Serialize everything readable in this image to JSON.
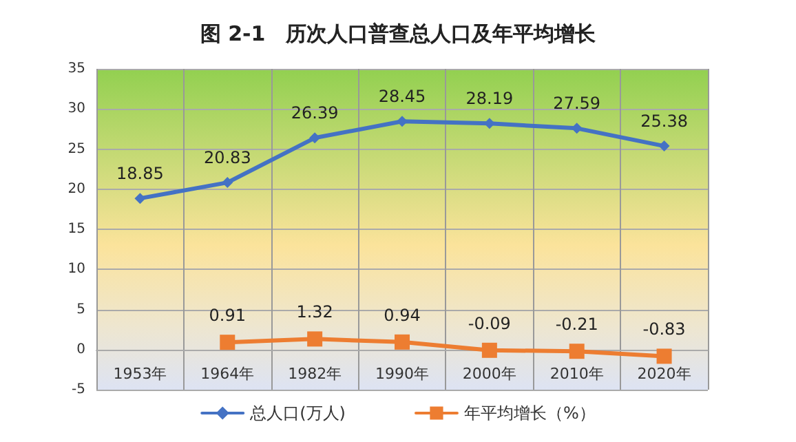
{
  "chart_data": {
    "type": "line",
    "title": "图 2-1　历次人口普查总人口及年平均增长",
    "categories": [
      "1953年",
      "1964年",
      "1982年",
      "1990年",
      "2000年",
      "2010年",
      "2020年"
    ],
    "series": [
      {
        "name": "总人口(万人)",
        "color": "#4472c4",
        "marker": "diamond",
        "values": [
          18.85,
          20.83,
          26.39,
          28.45,
          28.19,
          27.59,
          25.38
        ]
      },
      {
        "name": "年平均增长（%）",
        "color": "#ed7d31",
        "marker": "square",
        "values": [
          null,
          0.91,
          1.32,
          0.94,
          -0.09,
          -0.21,
          -0.83
        ]
      }
    ],
    "ylim": [
      -5,
      35
    ],
    "yticks": [
      -5,
      0,
      5,
      10,
      15,
      20,
      25,
      30,
      35
    ],
    "grid": true,
    "legend": "bottom",
    "data_labels": true
  }
}
